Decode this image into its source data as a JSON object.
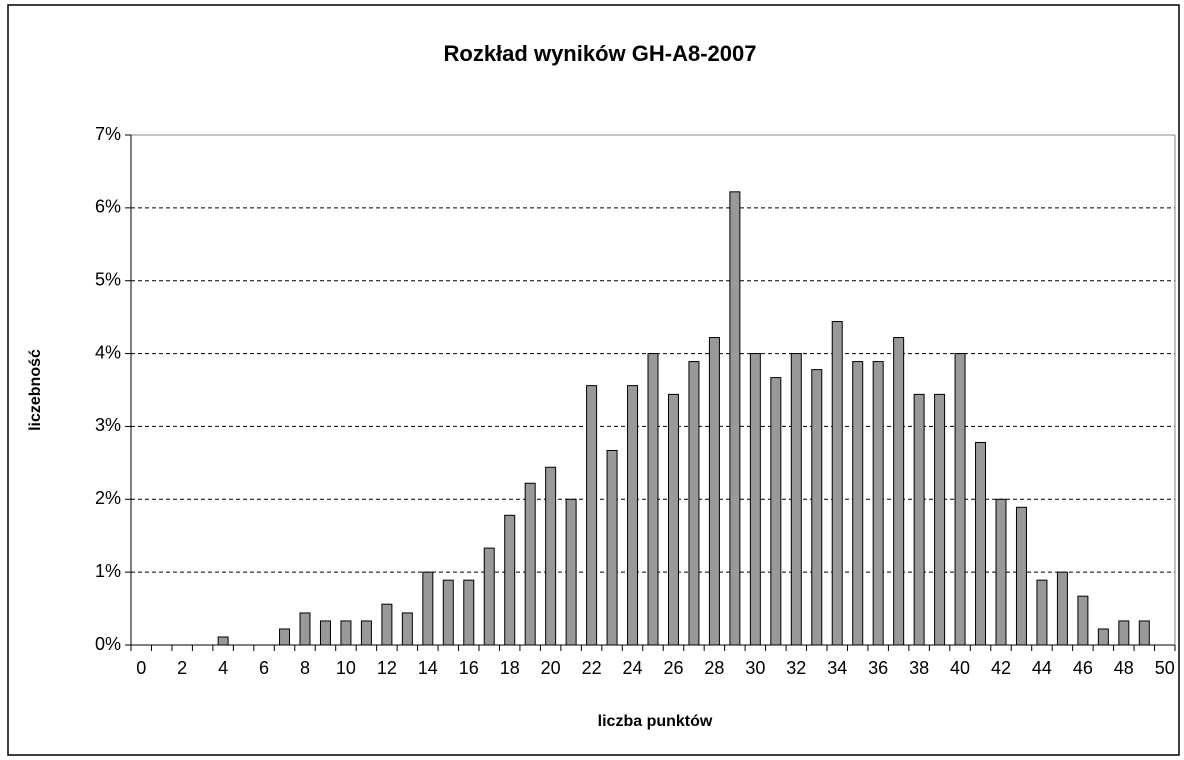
{
  "chart_data": {
    "type": "bar",
    "title": "Rozkład wyników GH-A8-2007",
    "x_label": "liczba punktów",
    "y_label": "liczebność",
    "categories": [
      "0",
      null,
      "2",
      null,
      "4",
      null,
      "6",
      null,
      "8",
      null,
      "10",
      null,
      "12",
      null,
      "14",
      null,
      "16",
      null,
      "18",
      null,
      "20",
      null,
      "22",
      null,
      "24",
      null,
      "26",
      null,
      "28",
      null,
      "30",
      null,
      "32",
      null,
      "34",
      null,
      "36",
      null,
      "38",
      null,
      "40",
      null,
      "42",
      null,
      "44",
      null,
      "46",
      null,
      "48",
      null,
      "50"
    ],
    "values": [
      0,
      0,
      0,
      0,
      0.11,
      0,
      0,
      0.22,
      0.44,
      0.33,
      0.33,
      0.33,
      0.56,
      0.44,
      1.0,
      0.89,
      0.89,
      1.33,
      1.78,
      2.22,
      2.44,
      2.0,
      3.56,
      2.67,
      3.56,
      4.0,
      3.44,
      3.89,
      4.22,
      6.22,
      4.0,
      3.67,
      4.0,
      3.78,
      4.44,
      3.89,
      3.89,
      4.22,
      3.44,
      3.44,
      4.0,
      2.78,
      2.0,
      1.89,
      0.89,
      1.0,
      0.67,
      0.22,
      0.33,
      0.33,
      0
    ],
    "color": "#999999",
    "ylim": [
      0,
      7
    ],
    "yticks": [
      {
        "value": 0,
        "label": "0%"
      },
      {
        "value": 1,
        "label": "1%"
      },
      {
        "value": 2,
        "label": "2%"
      },
      {
        "value": 3,
        "label": "3%"
      },
      {
        "value": 4,
        "label": "4%"
      },
      {
        "value": 5,
        "label": "5%"
      },
      {
        "value": 6,
        "label": "6%"
      },
      {
        "value": 7,
        "label": "7%"
      }
    ],
    "grid": true
  }
}
